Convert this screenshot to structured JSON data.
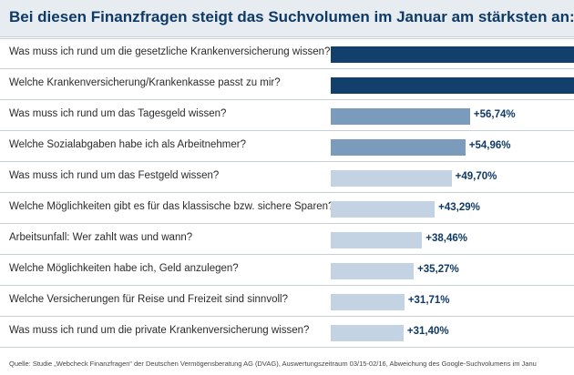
{
  "chart_data": {
    "type": "bar",
    "orientation": "horizontal",
    "title": "Bei diesen Finanzfragen steigt das Suchvolumen im Januar am stärksten an:",
    "categories": [
      "Was muss ich rund um die gesetzliche Krankenversicherung wissen?",
      "Welche Krankenversicherung/Krankenkasse passt zu mir?",
      "Was muss ich rund um das Tagesgeld wissen?",
      "Welche Sozialabgaben habe ich als Arbeitnehmer?",
      "Was muss ich rund um das Festgeld wissen?",
      "Welche Möglichkeiten gibt es für das klassische bzw. sichere Sparen?",
      "Arbeitsunfall: Wer zahlt was und wann?",
      "Welche Möglichkeiten habe ich, Geld anzulegen?",
      "Welche Versicherungen für Reise und Freizeit sind sinnvoll?",
      "Was muss ich rund um die private Krankenversicherung wissen?"
    ],
    "values": [
      null,
      null,
      56.74,
      54.96,
      49.7,
      43.29,
      38.46,
      35.27,
      31.71,
      31.4
    ],
    "value_labels": [
      "",
      "",
      "+56,74%",
      "+54,96%",
      "+49,70%",
      "+43,29%",
      "+38,46%",
      "+35,27%",
      "+31,71%",
      "+31,40%"
    ],
    "truncated": [
      true,
      true,
      false,
      false,
      false,
      false,
      false,
      false,
      false,
      false
    ],
    "colors": {
      "dark": "#123f6b",
      "mid": "#7b9bbd",
      "light": "#c3d3e4"
    },
    "bar_colors": [
      "dark",
      "dark",
      "mid",
      "mid",
      "light",
      "light",
      "light",
      "light",
      "light",
      "light"
    ],
    "source": "Quelle: Studie „Webcheck Finanzfragen“ der Deutschen Vermögensberatung AG (DVAG), Auswertungszeitraum 03/15-02/16, Abweichung des Google-Suchvolumens im Janu"
  }
}
